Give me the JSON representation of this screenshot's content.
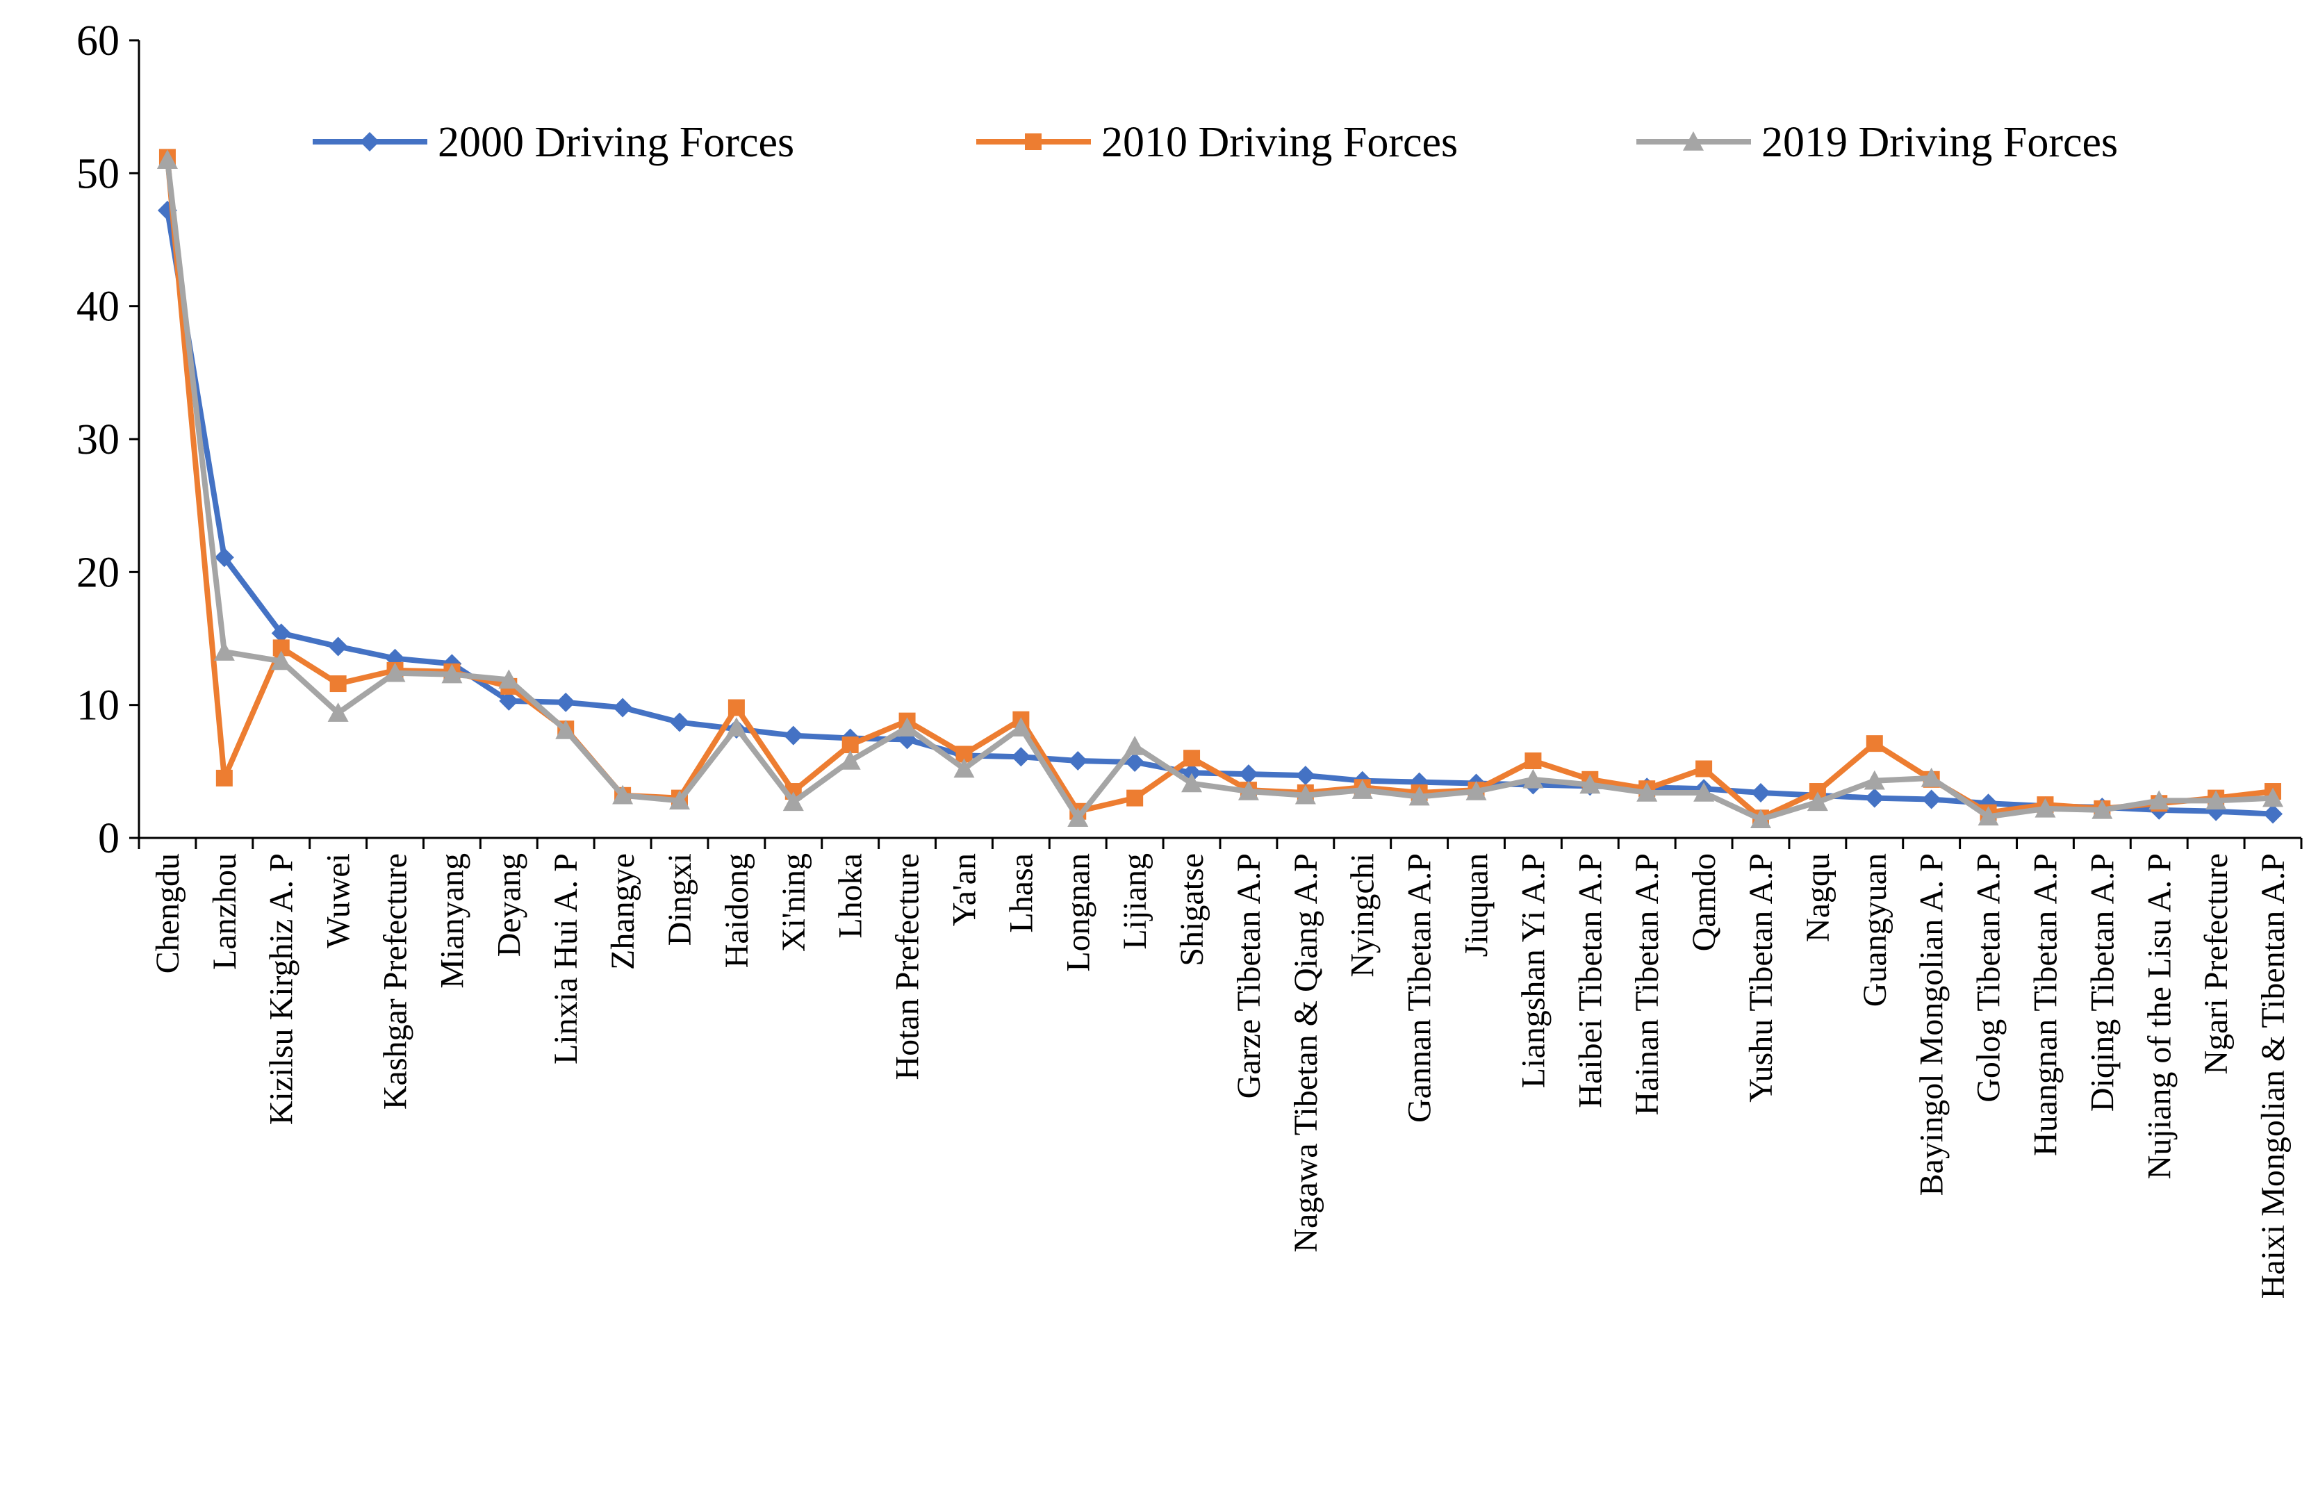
{
  "chart_data": {
    "type": "line",
    "title": "",
    "xlabel": "",
    "ylabel": "",
    "ylim": [
      0,
      60
    ],
    "yticks": [
      0,
      10,
      20,
      30,
      40,
      50,
      60
    ],
    "grid": false,
    "legend_position": "top",
    "categories": [
      "Chengdu",
      "Lanzhou",
      "Kizilsu Kirghiz A. P",
      "Wuwei",
      "Kashgar Prefecture",
      "Mianyang",
      "Deyang",
      "Linxia Hui A. P",
      "Zhangye",
      "Dingxi",
      "Haidong",
      "Xi'ning",
      "Lhoka",
      "Hotan Prefecture",
      "Ya'an",
      "Lhasa",
      "Longnan",
      "Lijiang",
      "Shigatse",
      "Garze Tibetan A.P",
      "Nagawa Tibetan & Qiang A.P",
      "Nyingchi",
      "Gannan Tibetan A.P",
      "Jiuquan",
      "Liangshan Yi A.P",
      "Haibei Tibetan A.P",
      "Hainan Tibetan A.P",
      "Qamdo",
      "Yushu Tibetan A.P",
      "Nagqu",
      "Guangyuan",
      "Bayingol Mongolian A. P",
      "Golog Tibetan A.P",
      "Huangnan Tibetan A.P",
      "Diqing Tibetan A.P",
      "Nujiang of the Lisu A. P",
      "Ngari Prefecture",
      "Haixi Mongolian & Tibentan A.P"
    ],
    "series": [
      {
        "name": "2000 Driving Forces",
        "color": "#4472C4",
        "marker": "diamond",
        "values": [
          47.2,
          21.1,
          15.4,
          14.4,
          13.5,
          13.1,
          10.3,
          10.2,
          9.8,
          8.7,
          8.2,
          7.7,
          7.5,
          7.4,
          6.2,
          6.1,
          5.8,
          5.7,
          4.9,
          4.8,
          4.7,
          4.3,
          4.2,
          4.1,
          4.0,
          3.9,
          3.8,
          3.7,
          3.4,
          3.2,
          3.0,
          2.9,
          2.6,
          2.4,
          2.3,
          2.1,
          2.0,
          1.8
        ]
      },
      {
        "name": "2010 Driving Forces",
        "color": "#ED7D31",
        "marker": "square",
        "values": [
          51.2,
          4.5,
          14.3,
          11.6,
          12.6,
          12.5,
          11.4,
          8.2,
          3.2,
          3.0,
          9.8,
          3.5,
          7.0,
          8.8,
          6.3,
          8.9,
          2.0,
          3.0,
          6.0,
          3.6,
          3.4,
          3.8,
          3.4,
          3.6,
          5.8,
          4.4,
          3.7,
          5.2,
          1.5,
          3.5,
          7.1,
          4.4,
          1.9,
          2.5,
          2.2,
          2.6,
          3.0,
          3.5
        ]
      },
      {
        "name": "2019 Driving Forces",
        "color": "#A5A5A5",
        "marker": "triangle",
        "values": [
          51.0,
          14.0,
          13.3,
          9.4,
          12.4,
          12.3,
          11.9,
          8.1,
          3.2,
          2.8,
          8.3,
          2.7,
          5.8,
          8.3,
          5.2,
          8.3,
          1.5,
          6.9,
          4.1,
          3.5,
          3.2,
          3.6,
          3.1,
          3.5,
          4.4,
          4.0,
          3.4,
          3.4,
          1.4,
          2.7,
          4.3,
          4.5,
          1.6,
          2.2,
          2.1,
          2.8,
          2.8,
          3.0
        ]
      }
    ]
  }
}
